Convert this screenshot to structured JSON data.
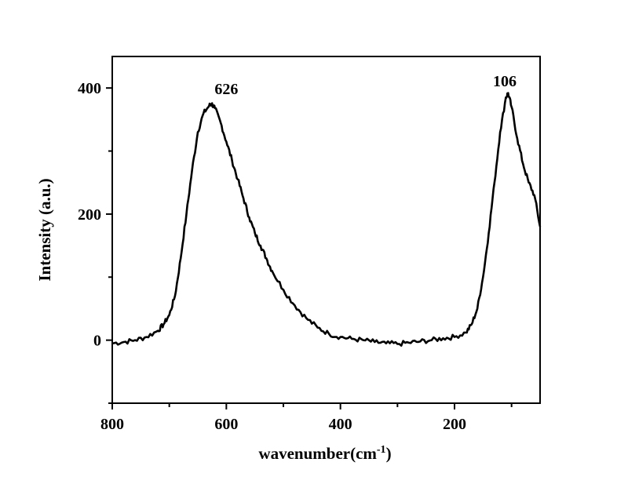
{
  "chart_data": {
    "type": "line",
    "title": "",
    "xlabel": "wavenumber(cm",
    "xlabel_superscript": "-1",
    "xlabel_suffix": ")",
    "ylabel": "Intensity (a.u.)",
    "xlim": [
      800,
      50
    ],
    "ylim": [
      -100,
      450
    ],
    "x_reversed": true,
    "grid": false,
    "xticks": [
      800,
      600,
      400,
      200
    ],
    "yticks": [
      0,
      200,
      400
    ],
    "annotations": [
      {
        "text": "626",
        "x": 600,
        "y": 390
      },
      {
        "text": "106",
        "x": 112,
        "y": 403
      }
    ],
    "series": [
      {
        "color": "#000000",
        "x": [
          800,
          780,
          760,
          740,
          720,
          710,
          700,
          690,
          680,
          670,
          660,
          650,
          640,
          630,
          626,
          620,
          610,
          600,
          590,
          580,
          570,
          560,
          550,
          540,
          530,
          520,
          500,
          480,
          460,
          440,
          420,
          400,
          380,
          360,
          340,
          320,
          300,
          280,
          260,
          240,
          220,
          200,
          180,
          170,
          160,
          150,
          140,
          130,
          120,
          110,
          106,
          100,
          90,
          80,
          70,
          60,
          50
        ],
        "y": [
          -5,
          -3,
          0,
          5,
          15,
          25,
          40,
          70,
          130,
          200,
          270,
          330,
          360,
          372,
          375,
          368,
          345,
          315,
          285,
          255,
          225,
          195,
          170,
          150,
          130,
          110,
          80,
          55,
          35,
          20,
          10,
          5,
          2,
          0,
          -3,
          -5,
          -6,
          -4,
          -2,
          0,
          3,
          5,
          12,
          25,
          50,
          100,
          170,
          250,
          330,
          385,
          392,
          370,
          320,
          280,
          250,
          230,
          180
        ]
      }
    ]
  }
}
